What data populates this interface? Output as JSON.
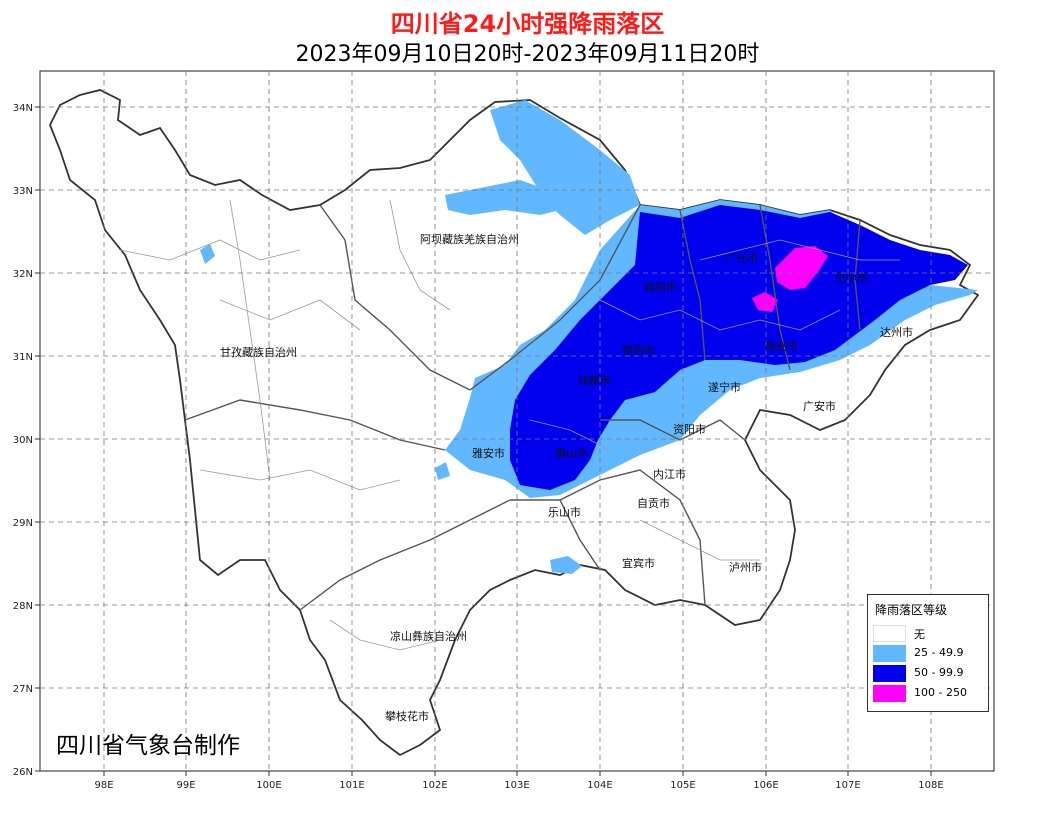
{
  "title": "四川省24小时强降雨落区",
  "subtitle": "2023年09月10日20时-2023年09月11日20时",
  "credit": "四川省气象台制作",
  "axes": {
    "lon_ticks": [
      "98E",
      "99E",
      "100E",
      "101E",
      "102E",
      "103E",
      "104E",
      "105E",
      "106E",
      "107E",
      "108E"
    ],
    "lat_ticks": [
      "34N",
      "33N",
      "32N",
      "31N",
      "30N",
      "29N",
      "28N",
      "27N",
      "26N"
    ],
    "grid": "dashed"
  },
  "regions": {
    "aba": "阿坝藏族羌族自治州",
    "ganzi": "甘孜藏族自治州",
    "liangshan": "凉山彝族自治州",
    "panzhihua": "攀枝花市",
    "yaan": "雅安市",
    "meishan": "眉山市",
    "leshan": "乐山市",
    "chengdu": "成都市",
    "deyang": "德阳市",
    "mianyang": "绵阳市",
    "guangyuan": "广元市",
    "bazhong": "巴中市",
    "nanchong": "南充市",
    "dazhou": "达州市",
    "suining": "遂宁市",
    "guangan": "广安市",
    "ziyang": "资阳市",
    "neijiang": "内江市",
    "zigong": "自贡市",
    "yibin": "宜宾市",
    "luzhou": "泸州市"
  },
  "legend": {
    "title": "降雨落区等级",
    "items": [
      {
        "label": "无",
        "color": "#ffffff"
      },
      {
        "label": "25 - 49.9",
        "color": "#61b8ff"
      },
      {
        "label": "50 - 99.9",
        "color": "#0000ee"
      },
      {
        "label": "100 - 250",
        "color": "#ff00ff"
      }
    ]
  }
}
